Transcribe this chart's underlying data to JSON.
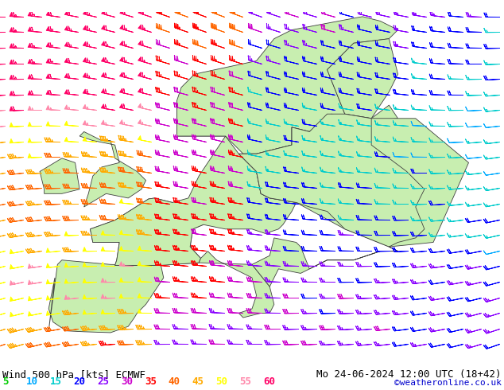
{
  "title_left": "Wind 500 hPa [kts] ECMWF",
  "title_right": "Mo 24-06-2024 12:00 UTC (18+42)",
  "credit": "©weatheronline.co.uk",
  "sea_color": "#e8e8e8",
  "land_color": "#c8eeb0",
  "coast_color": "#404040",
  "bg_color": "#ffffff",
  "legend_values": [
    5,
    10,
    15,
    20,
    25,
    30,
    35,
    40,
    45,
    50,
    55,
    60
  ],
  "legend_colors": [
    "#00cc00",
    "#00aaff",
    "#00cccc",
    "#0000ff",
    "#8800ff",
    "#cc00cc",
    "#ff0000",
    "#ff6600",
    "#ffaa00",
    "#ffff00",
    "#ff88aa",
    "#ff0066"
  ],
  "font_size_title": 9,
  "font_size_legend": 9,
  "font_size_credit": 8,
  "figsize": [
    6.34,
    4.9
  ],
  "dpi": 100
}
